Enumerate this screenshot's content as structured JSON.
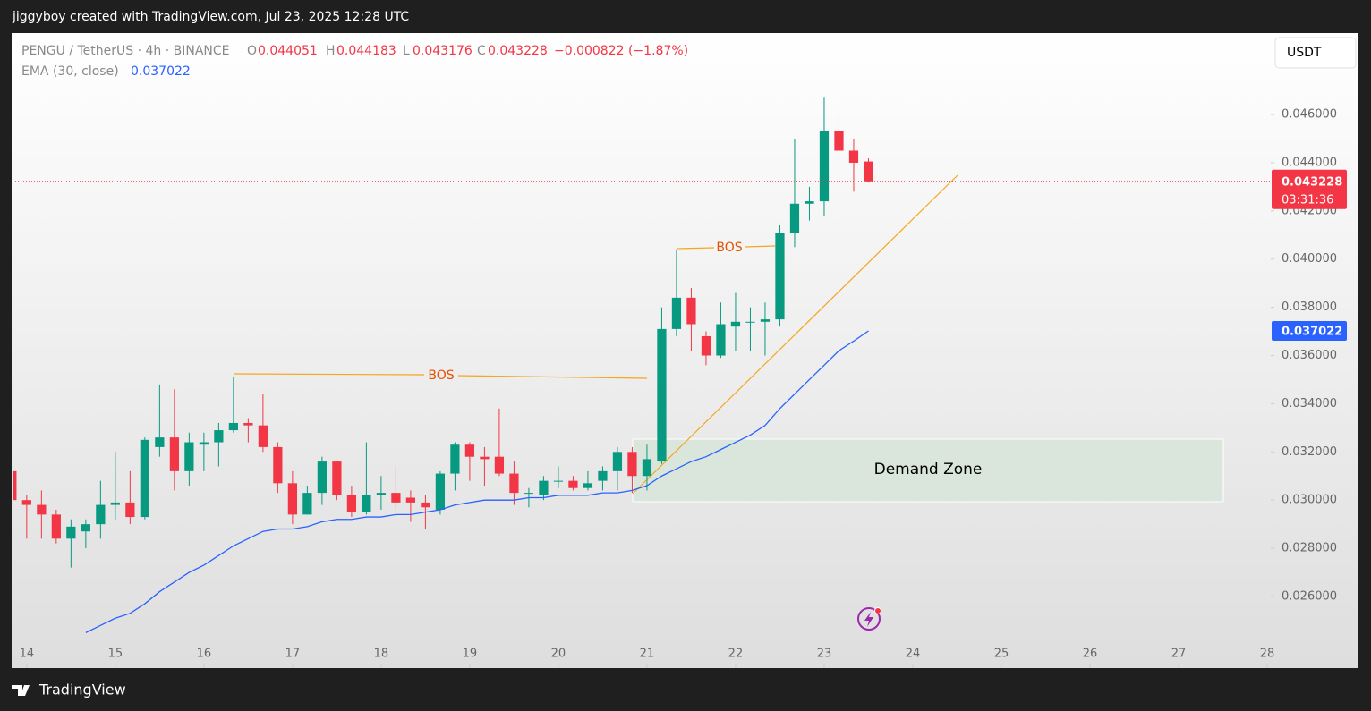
{
  "page": {
    "credit": "jiggyboy created with TradingView.com, Jul 23, 2025 12:28 UTC",
    "brand": "TradingView",
    "currency_button": "USDT"
  },
  "chart_data": {
    "type": "candlestick",
    "legend": {
      "symbol": "PENGU / TetherUS · 4h · BINANCE",
      "o": "O",
      "h": "H",
      "l": "L",
      "c": "C",
      "change": "−0.000822 (−1.87%)"
    },
    "countdown": "03:31:36",
    "up_color": "#089981",
    "down_color": "#f23645",
    "x": [
      13.8333,
      14,
      14.1667,
      14.3333,
      14.5,
      14.6667,
      14.8333,
      15,
      15.1667,
      15.3333,
      15.5,
      15.6667,
      15.8333,
      16,
      16.1667,
      16.3333,
      16.5,
      16.6667,
      16.8333,
      17,
      17.1667,
      17.3333,
      17.5,
      17.6667,
      17.8333,
      18,
      18.1667,
      18.3333,
      18.5,
      18.6667,
      18.8333,
      19,
      19.1667,
      19.3333,
      19.5,
      19.6667,
      19.8333,
      20,
      20.1667,
      20.3333,
      20.5,
      20.6667,
      20.8333,
      21,
      21.1667,
      21.3333,
      21.5,
      21.6667,
      21.8333,
      22,
      22.1667,
      22.3333,
      22.5,
      22.6667,
      22.8333,
      23,
      23.1667,
      23.3333,
      23.5
    ],
    "open": [
      0.0312,
      0.03,
      0.0298,
      0.0294,
      0.0284,
      0.0287,
      0.029,
      0.0298,
      0.0299,
      0.0293,
      0.0322,
      0.0326,
      0.0312,
      0.0323,
      0.0324,
      0.0329,
      0.0332,
      0.0331,
      0.0322,
      0.0307,
      0.0294,
      0.0303,
      0.0316,
      0.0302,
      0.0295,
      0.0302,
      0.0303,
      0.0301,
      0.0299,
      0.0296,
      0.0311,
      0.0323,
      0.0318,
      0.0318,
      0.0311,
      0.0303,
      0.0302,
      0.0308,
      0.0308,
      0.0305,
      0.0308,
      0.0312,
      0.032,
      0.031,
      0.0316,
      0.0371,
      0.0384,
      0.0368,
      0.036,
      0.0372,
      0.0374,
      0.0374,
      0.0375,
      0.0411,
      0.0423,
      0.0424,
      0.0453,
      0.0445,
      0.044051
    ],
    "high": [
      0.0314,
      0.0302,
      0.0304,
      0.0296,
      0.0292,
      0.0292,
      0.0308,
      0.032,
      0.0312,
      0.0326,
      0.0348,
      0.0346,
      0.0328,
      0.0328,
      0.0332,
      0.0351,
      0.0334,
      0.0344,
      0.0324,
      0.0312,
      0.0306,
      0.0318,
      0.0316,
      0.0306,
      0.0324,
      0.031,
      0.0314,
      0.0304,
      0.0302,
      0.0312,
      0.0324,
      0.0324,
      0.0322,
      0.0338,
      0.0316,
      0.0305,
      0.031,
      0.0314,
      0.031,
      0.0312,
      0.0314,
      0.0322,
      0.0322,
      0.0323,
      0.038,
      0.0404,
      0.0388,
      0.037,
      0.0382,
      0.0386,
      0.038,
      0.0382,
      0.0414,
      0.045,
      0.043,
      0.0467,
      0.046,
      0.045,
      0.044183
    ],
    "low": [
      0.0294,
      0.0284,
      0.0284,
      0.0282,
      0.0272,
      0.028,
      0.0284,
      0.0292,
      0.029,
      0.0292,
      0.0318,
      0.0304,
      0.0306,
      0.0312,
      0.0314,
      0.0328,
      0.0324,
      0.032,
      0.0303,
      0.029,
      0.0294,
      0.0298,
      0.03,
      0.0293,
      0.0294,
      0.0296,
      0.0296,
      0.0291,
      0.0288,
      0.0294,
      0.0304,
      0.0308,
      0.0306,
      0.031,
      0.0298,
      0.0297,
      0.03,
      0.0305,
      0.0304,
      0.0304,
      0.0304,
      0.0304,
      0.0303,
      0.0304,
      0.0315,
      0.0368,
      0.0362,
      0.0356,
      0.0359,
      0.0362,
      0.0362,
      0.036,
      0.0372,
      0.0405,
      0.0416,
      0.0418,
      0.044,
      0.0428,
      0.043176
    ],
    "close": [
      0.03,
      0.0298,
      0.0294,
      0.0284,
      0.0289,
      0.029,
      0.0298,
      0.0299,
      0.0293,
      0.0325,
      0.0326,
      0.0312,
      0.0324,
      0.0324,
      0.0329,
      0.0332,
      0.0331,
      0.0322,
      0.0307,
      0.0294,
      0.0303,
      0.0316,
      0.0302,
      0.0295,
      0.0302,
      0.0303,
      0.0299,
      0.0299,
      0.0297,
      0.0311,
      0.0323,
      0.0318,
      0.0317,
      0.0311,
      0.0303,
      0.0303,
      0.0308,
      0.0308,
      0.0305,
      0.0307,
      0.0312,
      0.032,
      0.031,
      0.0317,
      0.0371,
      0.0384,
      0.0373,
      0.036,
      0.0373,
      0.0374,
      0.0374,
      0.0375,
      0.0411,
      0.0423,
      0.0424,
      0.0453,
      0.0445,
      0.044,
      0.043228
    ],
    "series": [
      {
        "name": "EMA (30, close)",
        "color": "#2962ff",
        "values": [
          null,
          null,
          null,
          null,
          null,
          0.0245,
          0.0248,
          0.0251,
          0.0253,
          0.0257,
          0.0262,
          0.0266,
          0.027,
          0.0273,
          0.0277,
          0.0281,
          0.0284,
          0.0287,
          0.0288,
          0.0288,
          0.0289,
          0.0291,
          0.0292,
          0.0292,
          0.0293,
          0.0293,
          0.0294,
          0.0294,
          0.0295,
          0.0296,
          0.0298,
          0.0299,
          0.03,
          0.03,
          0.03,
          0.0301,
          0.0301,
          0.0302,
          0.0302,
          0.0302,
          0.0303,
          0.0303,
          0.0304,
          0.0306,
          0.031,
          0.0313,
          0.0316,
          0.0318,
          0.0321,
          0.0324,
          0.0327,
          0.0331,
          0.0338,
          0.0344,
          0.035,
          0.0356,
          0.0362,
          0.0366,
          0.037022
        ]
      }
    ],
    "xlim": [
      13.84,
      28.04
    ],
    "xticks": [
      14,
      15,
      16,
      17,
      18,
      19,
      20,
      21,
      22,
      23,
      24,
      25,
      26,
      27,
      28
    ],
    "ylim": [
      0.02303,
      0.04938
    ],
    "yticks": [
      {
        "value": 0.026,
        "label": "0.026000"
      },
      {
        "value": 0.028,
        "label": "0.028000"
      },
      {
        "value": 0.03,
        "label": "0.030000"
      },
      {
        "value": 0.032,
        "label": "0.032000"
      },
      {
        "value": 0.034,
        "label": "0.034000"
      },
      {
        "value": 0.036,
        "label": "0.036000"
      },
      {
        "value": 0.038,
        "label": "0.038000"
      },
      {
        "value": 0.04,
        "label": "0.040000"
      },
      {
        "value": 0.042,
        "label": "0.042000"
      },
      {
        "value": 0.044,
        "label": "0.044000"
      },
      {
        "value": 0.046,
        "label": "0.046000"
      }
    ],
    "annotations": {
      "bos": [
        "BOS",
        "BOS"
      ],
      "demand_zone": "Demand Zone",
      "trend_color": "#f7a51c"
    }
  }
}
